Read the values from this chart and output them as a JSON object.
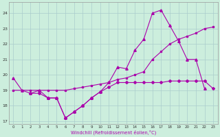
{
  "xlabel": "Windchill (Refroidissement éolien,°C)",
  "background_color": "#cceedd",
  "grid_color": "#aacccc",
  "line_color": "#aa00aa",
  "xlim": [
    -0.5,
    23.5
  ],
  "ylim": [
    16.8,
    24.7
  ],
  "yticks": [
    17,
    18,
    19,
    20,
    21,
    22,
    23,
    24
  ],
  "xticks": [
    0,
    1,
    2,
    3,
    4,
    5,
    6,
    7,
    8,
    9,
    10,
    11,
    12,
    13,
    14,
    15,
    16,
    17,
    18,
    19,
    20,
    21,
    22,
    23
  ],
  "series1_x": [
    0,
    1,
    2,
    3,
    4,
    5,
    6,
    7,
    8,
    9,
    10,
    11,
    12,
    13,
    14,
    15,
    16,
    17,
    18,
    19,
    20,
    21,
    22,
    23
  ],
  "series1_y": [
    19.8,
    19.0,
    18.8,
    19.0,
    18.5,
    18.5,
    17.2,
    17.6,
    18.0,
    18.5,
    18.9,
    19.5,
    20.5,
    20.4,
    21.6,
    22.3,
    24.0,
    24.2,
    23.2,
    22.2,
    21.0,
    21.0,
    19.1,
    null
  ],
  "series2_x": [
    0,
    1,
    2,
    3,
    4,
    5,
    6,
    7,
    8,
    9,
    10,
    11,
    12,
    13,
    14,
    15,
    16,
    17,
    18,
    19,
    20,
    21,
    22,
    23
  ],
  "series2_y": [
    19.0,
    19.0,
    19.0,
    19.0,
    19.0,
    19.0,
    19.0,
    19.1,
    19.2,
    19.3,
    19.4,
    19.5,
    19.7,
    19.8,
    20.0,
    20.2,
    21.0,
    21.5,
    22.0,
    22.3,
    22.5,
    22.7,
    23.0,
    23.1
  ],
  "series3_x": [
    0,
    1,
    2,
    3,
    4,
    5,
    6,
    7,
    8,
    9,
    10,
    11,
    12,
    13,
    14,
    15,
    16,
    17,
    18,
    19,
    20,
    21,
    22,
    23
  ],
  "series3_y": [
    null,
    null,
    18.8,
    18.8,
    18.5,
    18.5,
    17.2,
    17.6,
    18.0,
    18.5,
    18.9,
    19.2,
    19.5,
    19.5,
    19.5,
    19.5,
    19.5,
    19.5,
    19.6,
    19.6,
    19.6,
    19.6,
    19.6,
    19.1
  ]
}
